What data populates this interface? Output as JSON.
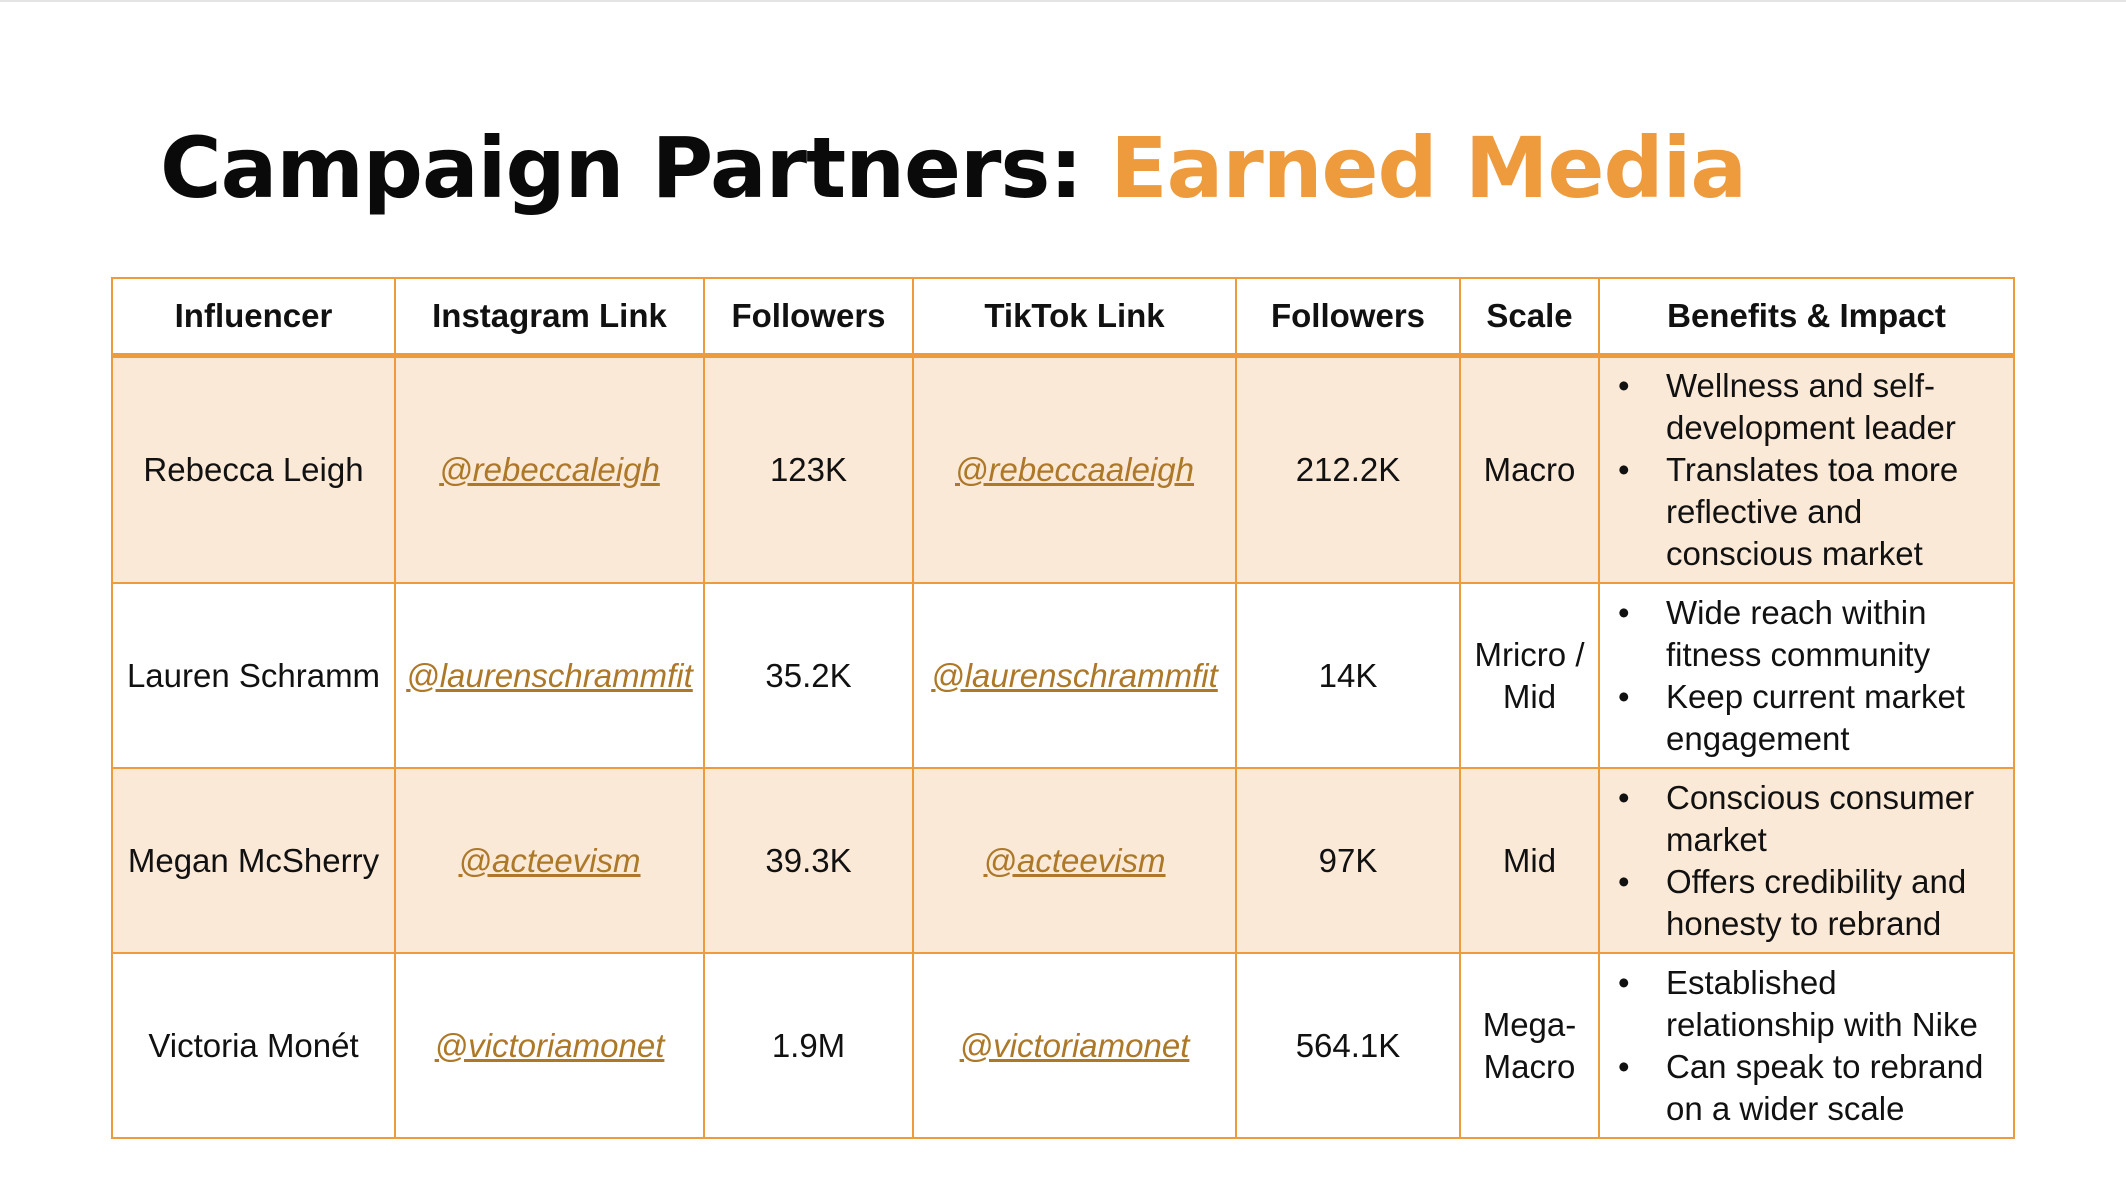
{
  "title": {
    "main": "Campaign Partners: ",
    "accent": "Earned Media"
  },
  "colors": {
    "accent": "#ee9b3e",
    "row_shade": "#fbe9d8",
    "link": "#ad7828"
  },
  "table": {
    "headers": [
      "Influencer",
      "Instagram Link",
      "Followers",
      "TikTok Link",
      "Followers",
      "Scale",
      "Benefits & Impact"
    ],
    "rows": [
      {
        "influencer": "Rebecca Leigh",
        "instagram": "@rebeccaleigh",
        "ig_followers": "123K",
        "tiktok": "@rebeccaaleigh",
        "tt_followers": "212.2K",
        "scale": "Macro",
        "benefits": [
          "Wellness and self-development leader",
          "Translates toa more reflective and conscious market"
        ]
      },
      {
        "influencer": "Lauren Schramm",
        "instagram": "@laurenschrammfit",
        "ig_followers": "35.2K",
        "tiktok": "@laurenschrammfit",
        "tt_followers": "14K",
        "scale": "Mricro / Mid",
        "benefits": [
          "Wide reach within fitness community",
          "Keep current market engagement"
        ]
      },
      {
        "influencer": "Megan McSherry",
        "instagram": "@acteevism",
        "ig_followers": "39.3K",
        "tiktok": "@acteevism",
        "tt_followers": "97K",
        "scale": "Mid",
        "benefits": [
          "Conscious consumer market",
          "Offers credibility and honesty to rebrand"
        ]
      },
      {
        "influencer": "Victoria Monét",
        "instagram": "@victoriamonet",
        "ig_followers": "1.9M",
        "tiktok": "@victoriamonet",
        "tt_followers": "564.1K",
        "scale": "Mega-Macro",
        "benefits": [
          "Established relationship with Nike",
          "Can speak to rebrand on a wider scale"
        ]
      }
    ]
  }
}
